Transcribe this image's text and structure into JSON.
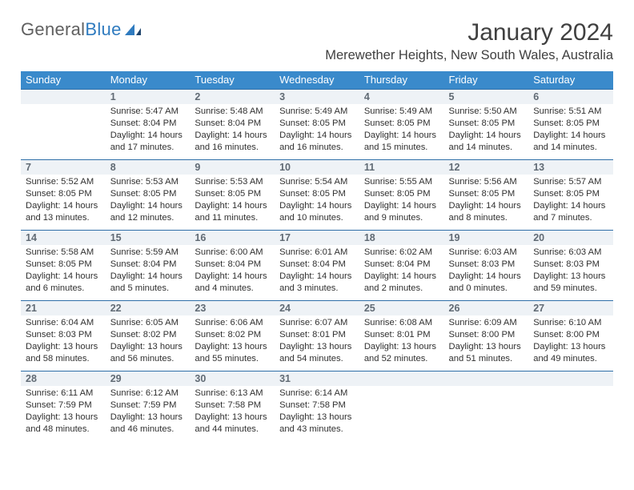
{
  "logo": {
    "part1": "General",
    "part2": "Blue",
    "accent_color": "#2f7bbf",
    "text_color": "#606060"
  },
  "title": "January 2024",
  "location": "Merewether Heights, New South Wales, Australia",
  "header_bg": "#3a8acb",
  "row_border": "#2f6fa8",
  "daynum_bg": "#eef2f6",
  "weekdays": [
    "Sunday",
    "Monday",
    "Tuesday",
    "Wednesday",
    "Thursday",
    "Friday",
    "Saturday"
  ],
  "weeks": [
    [
      null,
      {
        "n": "1",
        "sr": "5:47 AM",
        "ss": "8:04 PM",
        "dl": "14 hours and 17 minutes."
      },
      {
        "n": "2",
        "sr": "5:48 AM",
        "ss": "8:04 PM",
        "dl": "14 hours and 16 minutes."
      },
      {
        "n": "3",
        "sr": "5:49 AM",
        "ss": "8:05 PM",
        "dl": "14 hours and 16 minutes."
      },
      {
        "n": "4",
        "sr": "5:49 AM",
        "ss": "8:05 PM",
        "dl": "14 hours and 15 minutes."
      },
      {
        "n": "5",
        "sr": "5:50 AM",
        "ss": "8:05 PM",
        "dl": "14 hours and 14 minutes."
      },
      {
        "n": "6",
        "sr": "5:51 AM",
        "ss": "8:05 PM",
        "dl": "14 hours and 14 minutes."
      }
    ],
    [
      {
        "n": "7",
        "sr": "5:52 AM",
        "ss": "8:05 PM",
        "dl": "14 hours and 13 minutes."
      },
      {
        "n": "8",
        "sr": "5:53 AM",
        "ss": "8:05 PM",
        "dl": "14 hours and 12 minutes."
      },
      {
        "n": "9",
        "sr": "5:53 AM",
        "ss": "8:05 PM",
        "dl": "14 hours and 11 minutes."
      },
      {
        "n": "10",
        "sr": "5:54 AM",
        "ss": "8:05 PM",
        "dl": "14 hours and 10 minutes."
      },
      {
        "n": "11",
        "sr": "5:55 AM",
        "ss": "8:05 PM",
        "dl": "14 hours and 9 minutes."
      },
      {
        "n": "12",
        "sr": "5:56 AM",
        "ss": "8:05 PM",
        "dl": "14 hours and 8 minutes."
      },
      {
        "n": "13",
        "sr": "5:57 AM",
        "ss": "8:05 PM",
        "dl": "14 hours and 7 minutes."
      }
    ],
    [
      {
        "n": "14",
        "sr": "5:58 AM",
        "ss": "8:05 PM",
        "dl": "14 hours and 6 minutes."
      },
      {
        "n": "15",
        "sr": "5:59 AM",
        "ss": "8:04 PM",
        "dl": "14 hours and 5 minutes."
      },
      {
        "n": "16",
        "sr": "6:00 AM",
        "ss": "8:04 PM",
        "dl": "14 hours and 4 minutes."
      },
      {
        "n": "17",
        "sr": "6:01 AM",
        "ss": "8:04 PM",
        "dl": "14 hours and 3 minutes."
      },
      {
        "n": "18",
        "sr": "6:02 AM",
        "ss": "8:04 PM",
        "dl": "14 hours and 2 minutes."
      },
      {
        "n": "19",
        "sr": "6:03 AM",
        "ss": "8:03 PM",
        "dl": "14 hours and 0 minutes."
      },
      {
        "n": "20",
        "sr": "6:03 AM",
        "ss": "8:03 PM",
        "dl": "13 hours and 59 minutes."
      }
    ],
    [
      {
        "n": "21",
        "sr": "6:04 AM",
        "ss": "8:03 PM",
        "dl": "13 hours and 58 minutes."
      },
      {
        "n": "22",
        "sr": "6:05 AM",
        "ss": "8:02 PM",
        "dl": "13 hours and 56 minutes."
      },
      {
        "n": "23",
        "sr": "6:06 AM",
        "ss": "8:02 PM",
        "dl": "13 hours and 55 minutes."
      },
      {
        "n": "24",
        "sr": "6:07 AM",
        "ss": "8:01 PM",
        "dl": "13 hours and 54 minutes."
      },
      {
        "n": "25",
        "sr": "6:08 AM",
        "ss": "8:01 PM",
        "dl": "13 hours and 52 minutes."
      },
      {
        "n": "26",
        "sr": "6:09 AM",
        "ss": "8:00 PM",
        "dl": "13 hours and 51 minutes."
      },
      {
        "n": "27",
        "sr": "6:10 AM",
        "ss": "8:00 PM",
        "dl": "13 hours and 49 minutes."
      }
    ],
    [
      {
        "n": "28",
        "sr": "6:11 AM",
        "ss": "7:59 PM",
        "dl": "13 hours and 48 minutes."
      },
      {
        "n": "29",
        "sr": "6:12 AM",
        "ss": "7:59 PM",
        "dl": "13 hours and 46 minutes."
      },
      {
        "n": "30",
        "sr": "6:13 AM",
        "ss": "7:58 PM",
        "dl": "13 hours and 44 minutes."
      },
      {
        "n": "31",
        "sr": "6:14 AM",
        "ss": "7:58 PM",
        "dl": "13 hours and 43 minutes."
      },
      null,
      null,
      null
    ]
  ],
  "labels": {
    "sunrise": "Sunrise:",
    "sunset": "Sunset:",
    "daylight": "Daylight:"
  }
}
